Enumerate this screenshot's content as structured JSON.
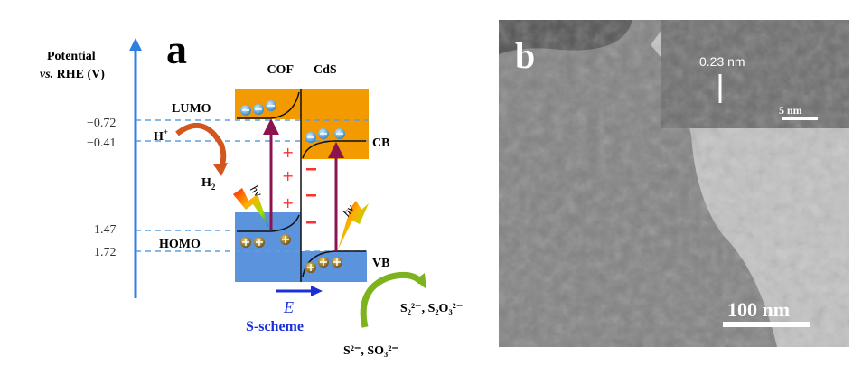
{
  "panel_a": {
    "label": "a",
    "axis_title_line1": "Potential",
    "axis_title_vs": "vs.",
    "axis_title_rest": " RHE (V)",
    "levels": [
      "−0.72",
      "−0.41",
      "1.47",
      "1.72"
    ],
    "cof_label": "COF",
    "cds_label": "CdS",
    "lumo_label": "LUMO",
    "homo_label": "HOMO",
    "cb_label": "CB",
    "vb_label": "VB",
    "h_plus": "H",
    "h_plus_sup": "+",
    "h2": "H",
    "h2_sub": "2",
    "hv": "hv",
    "field_label": "E",
    "scheme_label": "S-scheme",
    "product_text": "S₂²⁻, S₂O₃²⁻",
    "reactant_text": "S²⁻, SO₃²⁻",
    "colors": {
      "axis": "#2f7fe0",
      "conduction": "#f29a00",
      "valence": "#5b93dd",
      "excitation_arrow": "#8b1450",
      "field_arrow": "#1a2fd8",
      "h2_arrow": "#d2561e",
      "oxidation_arrow": "#7cb31e",
      "charge_sign": "#ff3030"
    }
  },
  "panel_b": {
    "label": "b",
    "lattice_spacing": "0.23 nm",
    "inset_scale": "5 nm",
    "main_scale": "100 nm"
  }
}
